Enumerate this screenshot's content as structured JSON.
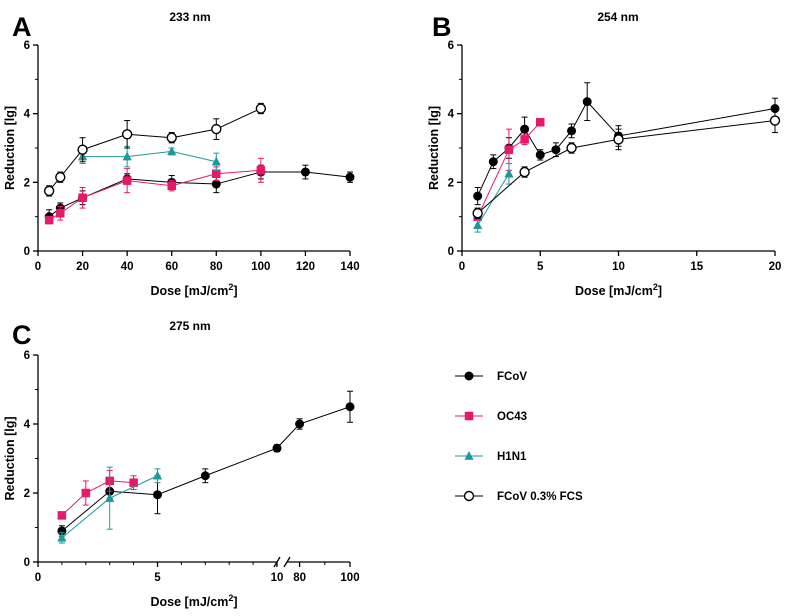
{
  "chart_data": [
    {
      "panel": "A",
      "title": "233 nm",
      "type": "line",
      "xlabel": "Dose [mJ/cm",
      "xlabel_sup": "2",
      "xlabel_end": "]",
      "ylabel": "Reduction [lg]",
      "xlim": [
        0,
        140
      ],
      "ylim": [
        0,
        6
      ],
      "xticks": [
        0,
        20,
        40,
        60,
        80,
        100,
        120,
        140
      ],
      "yticks": [
        0,
        2,
        4,
        6
      ],
      "series": [
        {
          "name": "FCoV",
          "x": [
            5,
            10,
            20,
            40,
            60,
            80,
            100,
            120,
            140
          ],
          "y": [
            1.0,
            1.25,
            1.55,
            2.1,
            2.0,
            1.95,
            2.3,
            2.3,
            2.15
          ],
          "err": [
            0.2,
            0.15,
            0.2,
            0.15,
            0.2,
            0.25,
            0.2,
            0.2,
            0.15
          ]
        },
        {
          "name": "OC43",
          "x": [
            5,
            10,
            20,
            40,
            60,
            80,
            100
          ],
          "y": [
            0.9,
            1.1,
            1.55,
            2.05,
            1.9,
            2.25,
            2.35
          ],
          "err": [
            0.1,
            0.2,
            0.3,
            0.35,
            0.15,
            0.2,
            0.35
          ]
        },
        {
          "name": "H1N1",
          "x": [
            20,
            40,
            60,
            80
          ],
          "y": [
            2.75,
            2.75,
            2.9,
            2.6
          ],
          "err": [
            0.2,
            0.3,
            0.1,
            0.25
          ]
        },
        {
          "name": "FCoV 0.3% FCS",
          "x": [
            5,
            10,
            20,
            40,
            60,
            80,
            100
          ],
          "y": [
            1.75,
            2.15,
            2.95,
            3.4,
            3.3,
            3.55,
            4.15
          ],
          "err": [
            0.15,
            0.15,
            0.35,
            0.4,
            0.15,
            0.3,
            0.15
          ]
        }
      ]
    },
    {
      "panel": "B",
      "title": "254 nm",
      "type": "line",
      "xlabel": "Dose [mJ/cm",
      "xlabel_sup": "2",
      "xlabel_end": "]",
      "ylabel": "Reduction [lg]",
      "xlim": [
        0,
        20
      ],
      "ylim": [
        0,
        6
      ],
      "xticks": [
        0,
        5,
        10,
        15,
        20
      ],
      "yticks": [
        0,
        2,
        4,
        6
      ],
      "series": [
        {
          "name": "FCoV",
          "x": [
            1,
            2,
            3,
            4,
            5,
            6,
            7,
            8,
            10,
            20
          ],
          "y": [
            1.6,
            2.6,
            3.0,
            3.55,
            2.8,
            2.95,
            3.5,
            4.35,
            3.35,
            4.15
          ],
          "err": [
            0.25,
            0.2,
            0.3,
            0.35,
            0.15,
            0.2,
            0.2,
            0.55,
            0.3,
            0.3
          ]
        },
        {
          "name": "OC43",
          "x": [
            1,
            3,
            4,
            5
          ],
          "y": [
            1.0,
            2.95,
            3.25,
            3.75
          ],
          "err": [
            0.1,
            0.6,
            0.15,
            0.1
          ]
        },
        {
          "name": "H1N1",
          "x": [
            1,
            3
          ],
          "y": [
            0.75,
            2.25
          ],
          "err": [
            0.2,
            0.3
          ]
        },
        {
          "name": "FCoV 0.3% FCS",
          "x": [
            1,
            4,
            7,
            10,
            20
          ],
          "y": [
            1.1,
            2.3,
            3.0,
            3.25,
            3.8
          ],
          "err": [
            0.15,
            0.15,
            0.15,
            0.3,
            0.35
          ]
        }
      ]
    },
    {
      "panel": "C",
      "title": "275 nm",
      "type": "line",
      "xlabel": "Dose [mJ/cm",
      "xlabel_sup": "2",
      "xlabel_end": "]",
      "ylabel": "Reduction [lg]",
      "xlim_segment1": [
        0,
        10
      ],
      "xlim_segment2": [
        75,
        100
      ],
      "axis_break": true,
      "ylim": [
        0,
        6
      ],
      "xticks": [
        0,
        5,
        10,
        80,
        100
      ],
      "yticks": [
        0,
        2,
        4,
        6
      ],
      "series": [
        {
          "name": "FCoV",
          "x": [
            1,
            3,
            5,
            7,
            10,
            80,
            100
          ],
          "y": [
            0.9,
            2.05,
            1.95,
            2.5,
            3.3,
            4.0,
            4.5
          ],
          "err": [
            0.15,
            0.2,
            0.55,
            0.2,
            0.1,
            0.15,
            0.45
          ]
        },
        {
          "name": "OC43",
          "x": [
            1,
            2,
            3,
            4
          ],
          "y": [
            1.35,
            2.0,
            2.35,
            2.3
          ],
          "err": [
            0.1,
            0.35,
            0.3,
            0.2
          ]
        },
        {
          "name": "H1N1",
          "x": [
            1,
            3,
            5
          ],
          "y": [
            0.7,
            1.85,
            2.5
          ],
          "err": [
            0.15,
            0.9,
            0.2
          ]
        }
      ]
    }
  ],
  "legend": [
    {
      "label": "FCoV",
      "color": "#000000",
      "marker": "circle-filled"
    },
    {
      "label": "OC43",
      "color": "#e6196a",
      "marker": "square-filled"
    },
    {
      "label": "H1N1",
      "color": "#1a9a9a",
      "marker": "triangle-filled"
    },
    {
      "label": "FCoV 0.3% FCS",
      "color": "#000000",
      "marker": "circle-open"
    }
  ],
  "colors": {
    "FCoV": "#000000",
    "OC43": "#e6196a",
    "H1N1": "#1a9a9a",
    "FCoV 0.3% FCS": "#000000"
  }
}
